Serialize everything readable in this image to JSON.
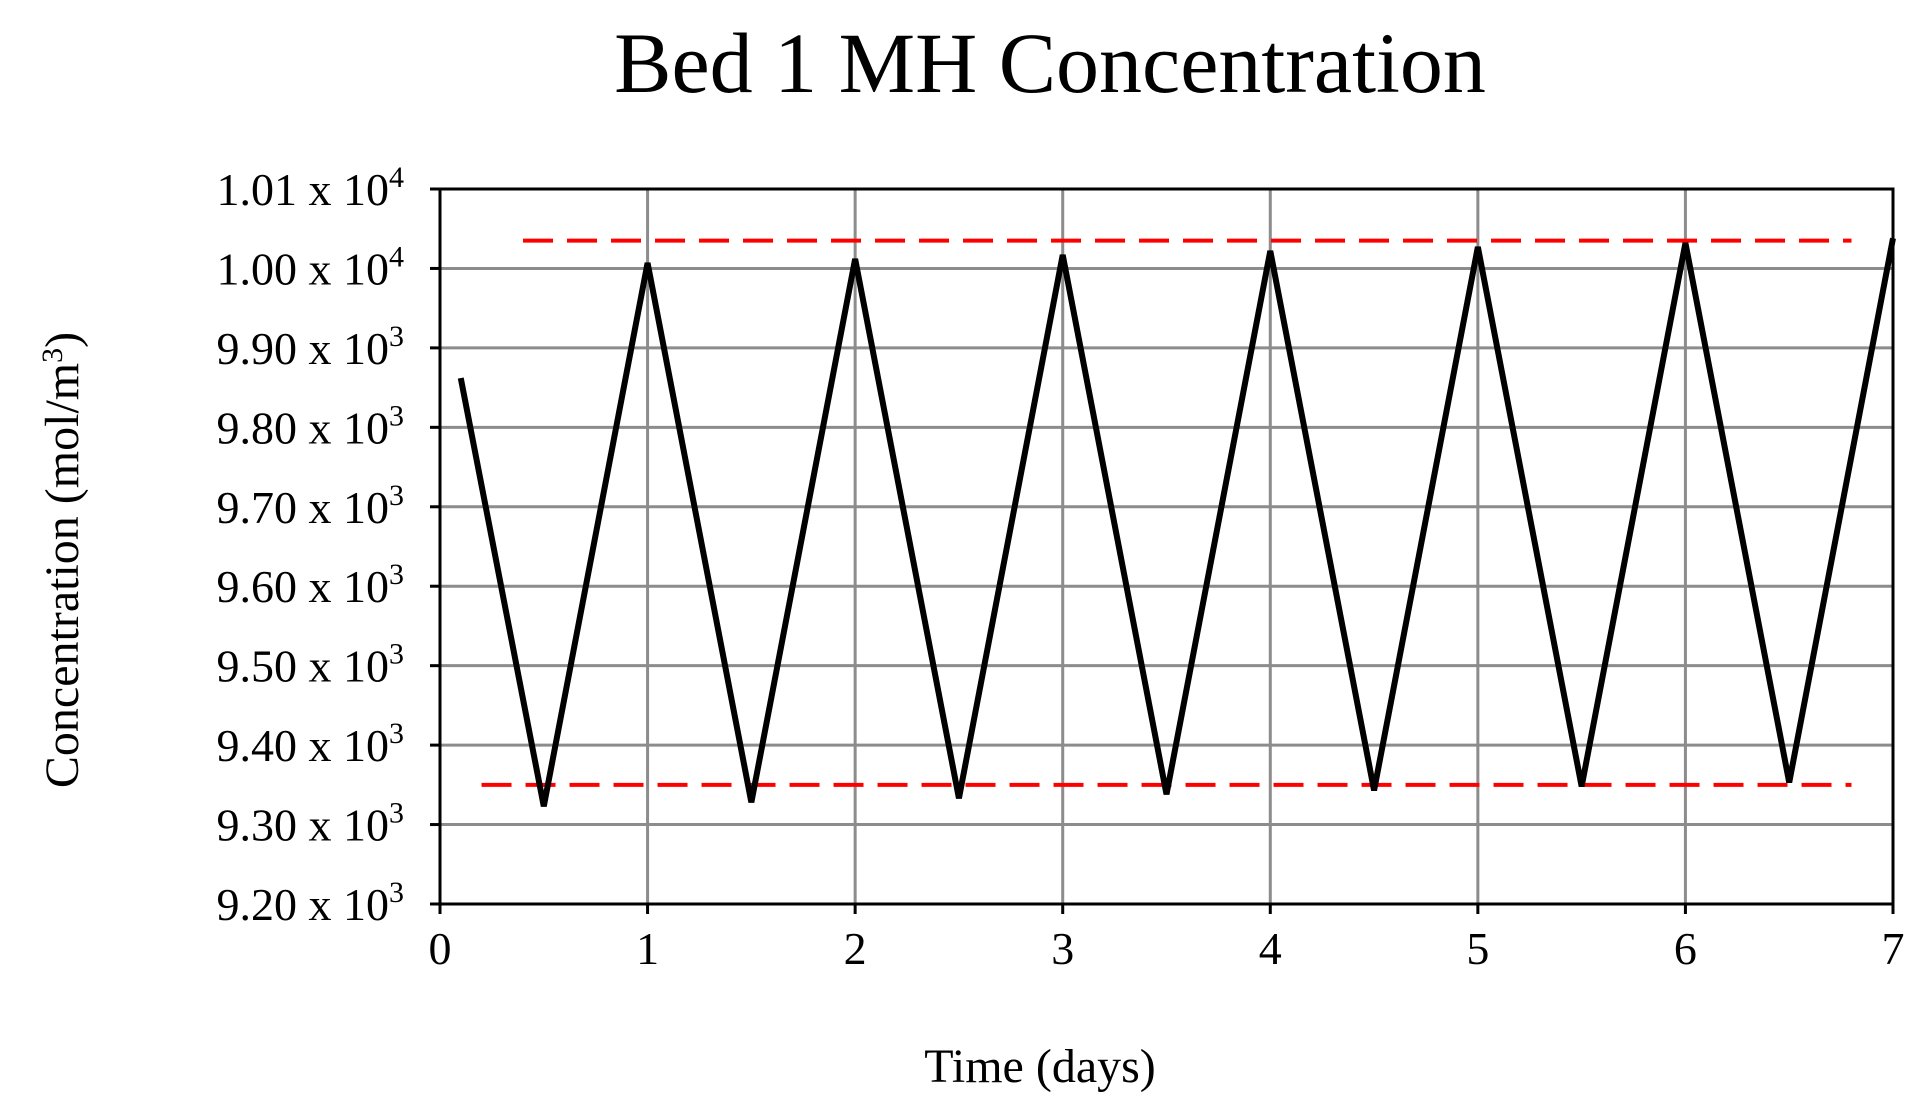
{
  "chart_data": {
    "type": "line",
    "title": "Bed 1 MH Concentration",
    "x_label": "Time (days)",
    "y_label": "Concentration (mol/m",
    "y_label_exponent": "3",
    "y_label_end": ")",
    "x": [
      0.1,
      0.5,
      1,
      1.5,
      2,
      2.5,
      3,
      3.5,
      4,
      4.5,
      5,
      5.5,
      6,
      6.5,
      7
    ],
    "series": [
      {
        "color": "#000000",
        "values": [
          9862,
          9323,
          10007,
          9328,
          10012,
          9333,
          10017,
          9338,
          10022,
          9343,
          10027,
          9348,
          10032,
          9353,
          10038
        ]
      }
    ],
    "reference_lines": [
      {
        "value": 10035,
        "xlim": [
          0.4,
          6.8
        ],
        "color": "#ff0000"
      },
      {
        "value": 9350,
        "xlim": [
          0.2,
          6.8
        ],
        "color": "#ff0000"
      }
    ],
    "xlim": [
      0,
      7
    ],
    "xticks": [
      0,
      1,
      2,
      3,
      4,
      5,
      6,
      7
    ],
    "ylim": [
      9200,
      10100
    ],
    "yticks": [
      {
        "value": 9200,
        "label": "9.20 x 10",
        "exponent": "3"
      },
      {
        "value": 9300,
        "label": "9.30 x 10",
        "exponent": "3"
      },
      {
        "value": 9400,
        "label": "9.40 x 10",
        "exponent": "3"
      },
      {
        "value": 9500,
        "label": "9.50 x 10",
        "exponent": "3"
      },
      {
        "value": 9600,
        "label": "9.60 x 10",
        "exponent": "3"
      },
      {
        "value": 9700,
        "label": "9.70 x 10",
        "exponent": "3"
      },
      {
        "value": 9800,
        "label": "9.80 x 10",
        "exponent": "3"
      },
      {
        "value": 9900,
        "label": "9.90 x 10",
        "exponent": "3"
      },
      {
        "value": 10000,
        "label": "1.00 x 10",
        "exponent": "4"
      },
      {
        "value": 10100,
        "label": "1.01 x 10",
        "exponent": "4"
      }
    ],
    "grid": true
  }
}
